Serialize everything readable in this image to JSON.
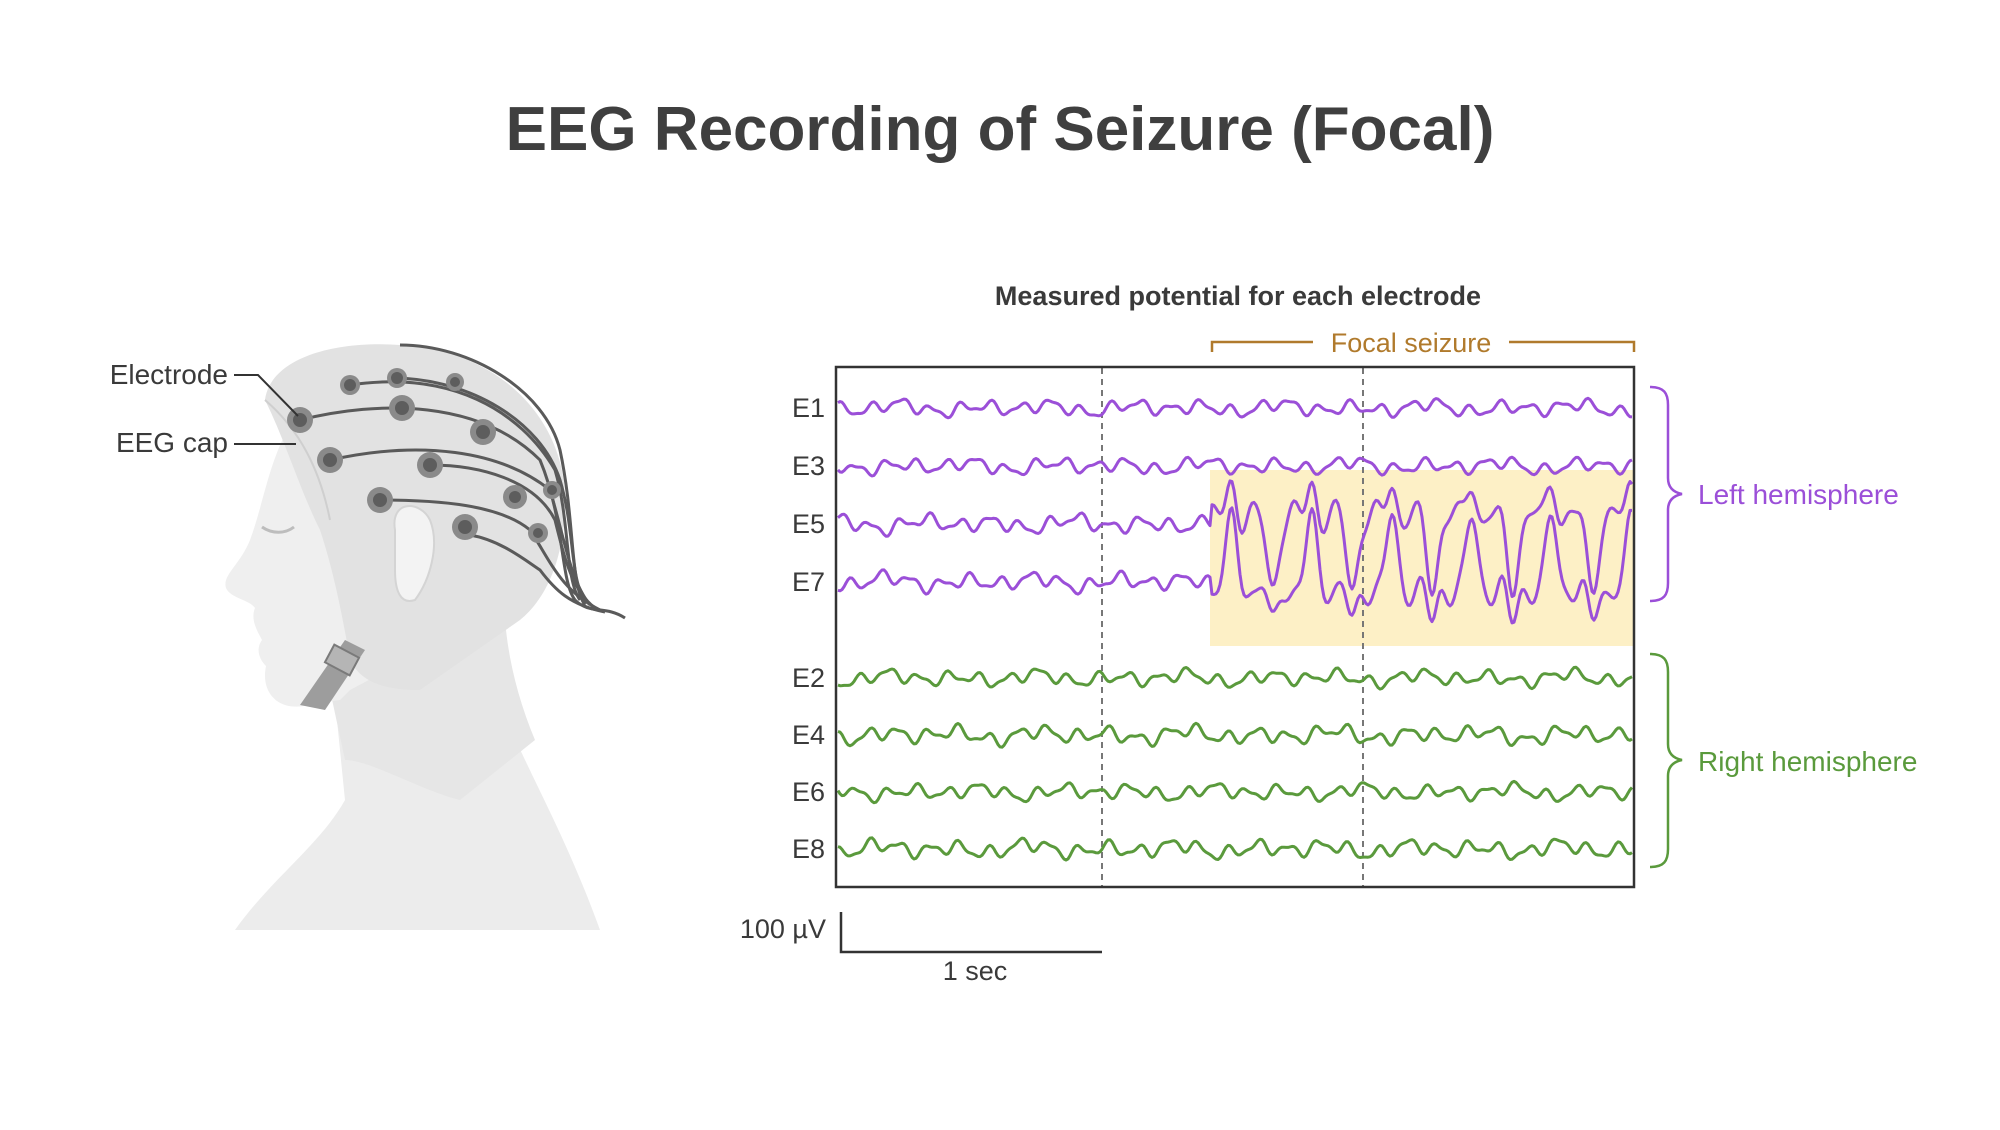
{
  "title": "EEG Recording of Seizure (Focal)",
  "head_labels": {
    "electrode": "Electrode",
    "eeg_cap": "EEG cap"
  },
  "chart": {
    "subtitle": "Measured potential for each electrode",
    "focal_label": "Focal seizure",
    "left_hemisphere": "Left hemisphere",
    "right_hemisphere": "Right hemisphere",
    "channels_left": [
      "E1",
      "E3",
      "E5",
      "E7"
    ],
    "channels_right": [
      "E2",
      "E4",
      "E6",
      "E8"
    ],
    "scale_voltage": "100 µV",
    "scale_time": "1 sec"
  },
  "colors": {
    "left": "#9b4fd8",
    "right": "#5a9a3c",
    "focal": "#b07a2c",
    "highlight": "#fdf0c6"
  }
}
